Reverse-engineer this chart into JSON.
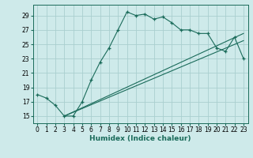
{
  "xlabel": "Humidex (Indice chaleur)",
  "bg_color": "#ceeaea",
  "grid_color": "#aacfcf",
  "line_color": "#1a6b5a",
  "xlim": [
    -0.5,
    23.5
  ],
  "ylim": [
    14.0,
    30.5
  ],
  "xticks": [
    0,
    1,
    2,
    3,
    4,
    5,
    6,
    7,
    8,
    9,
    10,
    11,
    12,
    13,
    14,
    15,
    16,
    17,
    18,
    19,
    20,
    21,
    22,
    23
  ],
  "yticks": [
    15,
    17,
    19,
    21,
    23,
    25,
    27,
    29
  ],
  "series1_x": [
    0,
    1,
    2,
    3,
    4,
    5,
    6,
    7,
    8,
    9,
    10,
    11,
    12,
    13,
    14,
    15,
    16,
    17,
    18,
    19,
    20,
    21,
    22,
    23
  ],
  "series1_y": [
    18.0,
    17.5,
    16.5,
    15.0,
    15.0,
    17.0,
    20.0,
    22.5,
    24.5,
    27.0,
    29.5,
    29.0,
    29.2,
    28.5,
    28.8,
    28.0,
    27.0,
    27.0,
    26.5,
    26.5,
    24.5,
    24.0,
    26.0,
    23.0
  ],
  "series2_x": [
    3,
    23
  ],
  "series2_y": [
    15.0,
    26.5
  ],
  "series3_x": [
    3,
    23
  ],
  "series3_y": [
    15.0,
    25.5
  ],
  "tick_fontsize": 5.5,
  "xlabel_fontsize": 6.5
}
